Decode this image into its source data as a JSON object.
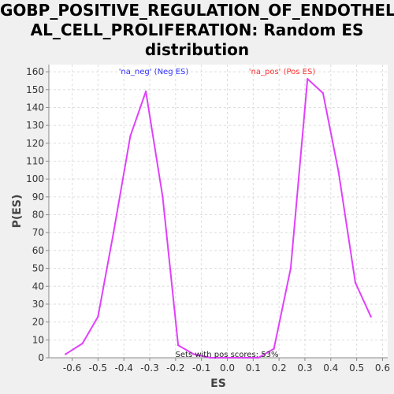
{
  "title": {
    "line1": "GOBP_POSITIVE_REGULATION_OF_ENDOTHELI",
    "line2": "AL_CELL_PROLIFERATION: Random ES",
    "line3": "distribution"
  },
  "colors": {
    "background": "#f0f0f0",
    "plot_bg": "#ffffff",
    "line": "#e040fb",
    "grid": "#dddddd",
    "neg_legend": "#3030ff",
    "pos_legend": "#ff3030"
  },
  "chart_data": {
    "type": "line",
    "xlabel": "ES",
    "ylabel": "P(ES)",
    "xlim": [
      -0.69,
      0.62
    ],
    "ylim": [
      0,
      164
    ],
    "grid": true,
    "xticks": [
      -0.6,
      -0.5,
      -0.4,
      -0.3,
      -0.2,
      -0.1,
      0.0,
      0.1,
      0.2,
      0.3,
      0.4,
      0.5,
      0.6
    ],
    "xtick_labels": [
      "-0.6",
      "-0.5",
      "-0.4",
      "-0.3",
      "-0.2",
      "-0.1",
      "0.0",
      "0.1",
      "0.2",
      "0.3",
      "0.4",
      "0.5",
      "0.6"
    ],
    "yticks": [
      0,
      10,
      20,
      30,
      40,
      50,
      60,
      70,
      80,
      90,
      100,
      110,
      120,
      130,
      140,
      150,
      160
    ],
    "ytick_labels": [
      "0",
      "10",
      "20",
      "30",
      "40",
      "50",
      "60",
      "70",
      "80",
      "90",
      "100",
      "110",
      "120",
      "130",
      "140",
      "150",
      "160"
    ],
    "series": [
      {
        "x": [
          -0.625,
          -0.56,
          -0.5,
          -0.44,
          -0.375,
          -0.315,
          -0.25,
          -0.19,
          -0.13,
          -0.065,
          0.0,
          0.06,
          0.12,
          0.18,
          0.245,
          0.31,
          0.37,
          0.43,
          0.495,
          0.555
        ],
        "y": [
          2,
          8,
          23,
          70,
          124,
          149,
          90,
          7,
          2,
          0,
          0,
          0,
          0,
          5,
          50,
          156,
          148,
          104,
          42,
          23
        ]
      }
    ],
    "legend": {
      "neg": "'na_neg' (Neg ES)",
      "pos": "'na_pos' (Pos ES)"
    },
    "annotation": "Sets with pos scores: 53%"
  }
}
